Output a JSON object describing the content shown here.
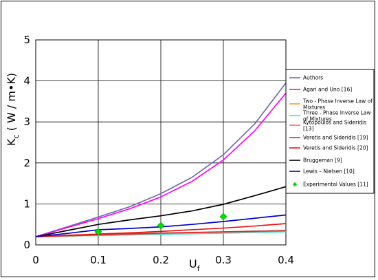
{
  "chart_data": {
    "type": "line",
    "title": "",
    "xlabel": "U",
    "xlabel_sub": "f",
    "ylabel": "K",
    "ylabel_sub": "c",
    "ylabel_units": " ( W / m•K)",
    "xlim": [
      0,
      0.4
    ],
    "ylim": [
      0,
      5
    ],
    "xticks": [
      "0",
      "0.1",
      "0.2",
      "0.3",
      "0.4"
    ],
    "yticks": [
      "0",
      "1",
      "2",
      "3",
      "4",
      "5"
    ],
    "grid": true,
    "legend_position": "right",
    "x": [
      0,
      0.05,
      0.1,
      0.15,
      0.2,
      0.25,
      0.3,
      0.35,
      0.4
    ],
    "series": [
      {
        "name": "Authors",
        "color": "#6e6ea6",
        "values": [
          0.2,
          0.44,
          0.68,
          0.93,
          1.25,
          1.65,
          2.2,
          2.95,
          3.95
        ]
      },
      {
        "name": "Agari and Uno [16]",
        "color": "#ff00ff",
        "values": [
          0.2,
          0.42,
          0.64,
          0.88,
          1.17,
          1.55,
          2.07,
          2.78,
          3.7
        ]
      },
      {
        "name": "Two - Phase Inverse Law of Mixtures",
        "color": "#ff9933",
        "values": [
          0.2,
          0.215,
          0.23,
          0.245,
          0.26,
          0.275,
          0.29,
          0.305,
          0.32
        ]
      },
      {
        "name": "Three - Phase Inverse Law of Mixtures",
        "color": "#33e6cc",
        "values": [
          0.2,
          0.215,
          0.23,
          0.245,
          0.26,
          0.275,
          0.29,
          0.305,
          0.32
        ]
      },
      {
        "name": "Kytopoulos and Sideridis [13]",
        "color": "#ff6666",
        "values": [
          0.2,
          0.22,
          0.24,
          0.26,
          0.28,
          0.295,
          0.31,
          0.325,
          0.34
        ]
      },
      {
        "name": "Veretis and Sideridis [19]",
        "color": "#cc3333",
        "values": [
          0.2,
          0.225,
          0.25,
          0.27,
          0.29,
          0.305,
          0.32,
          0.335,
          0.35
        ]
      },
      {
        "name": "Veretis and Sideridis [20]",
        "color": "#ee1111",
        "values": [
          0.2,
          0.235,
          0.265,
          0.295,
          0.33,
          0.37,
          0.41,
          0.46,
          0.52
        ]
      },
      {
        "name": "Bruggeman [9]",
        "color": "#000000",
        "values": [
          0.2,
          0.35,
          0.5,
          0.61,
          0.71,
          0.83,
          0.99,
          1.2,
          1.42
        ]
      },
      {
        "name": "Lewis – Nielsen [10]",
        "color": "#0000cc",
        "values": [
          0.2,
          0.28,
          0.37,
          0.4,
          0.44,
          0.5,
          0.57,
          0.65,
          0.73
        ]
      }
    ],
    "experimental": {
      "name": "Experimental Values [11]",
      "color": "#00dd00",
      "points": [
        {
          "x": 0.1,
          "y": 0.32
        },
        {
          "x": 0.2,
          "y": 0.47
        },
        {
          "x": 0.3,
          "y": 0.69
        }
      ]
    }
  }
}
